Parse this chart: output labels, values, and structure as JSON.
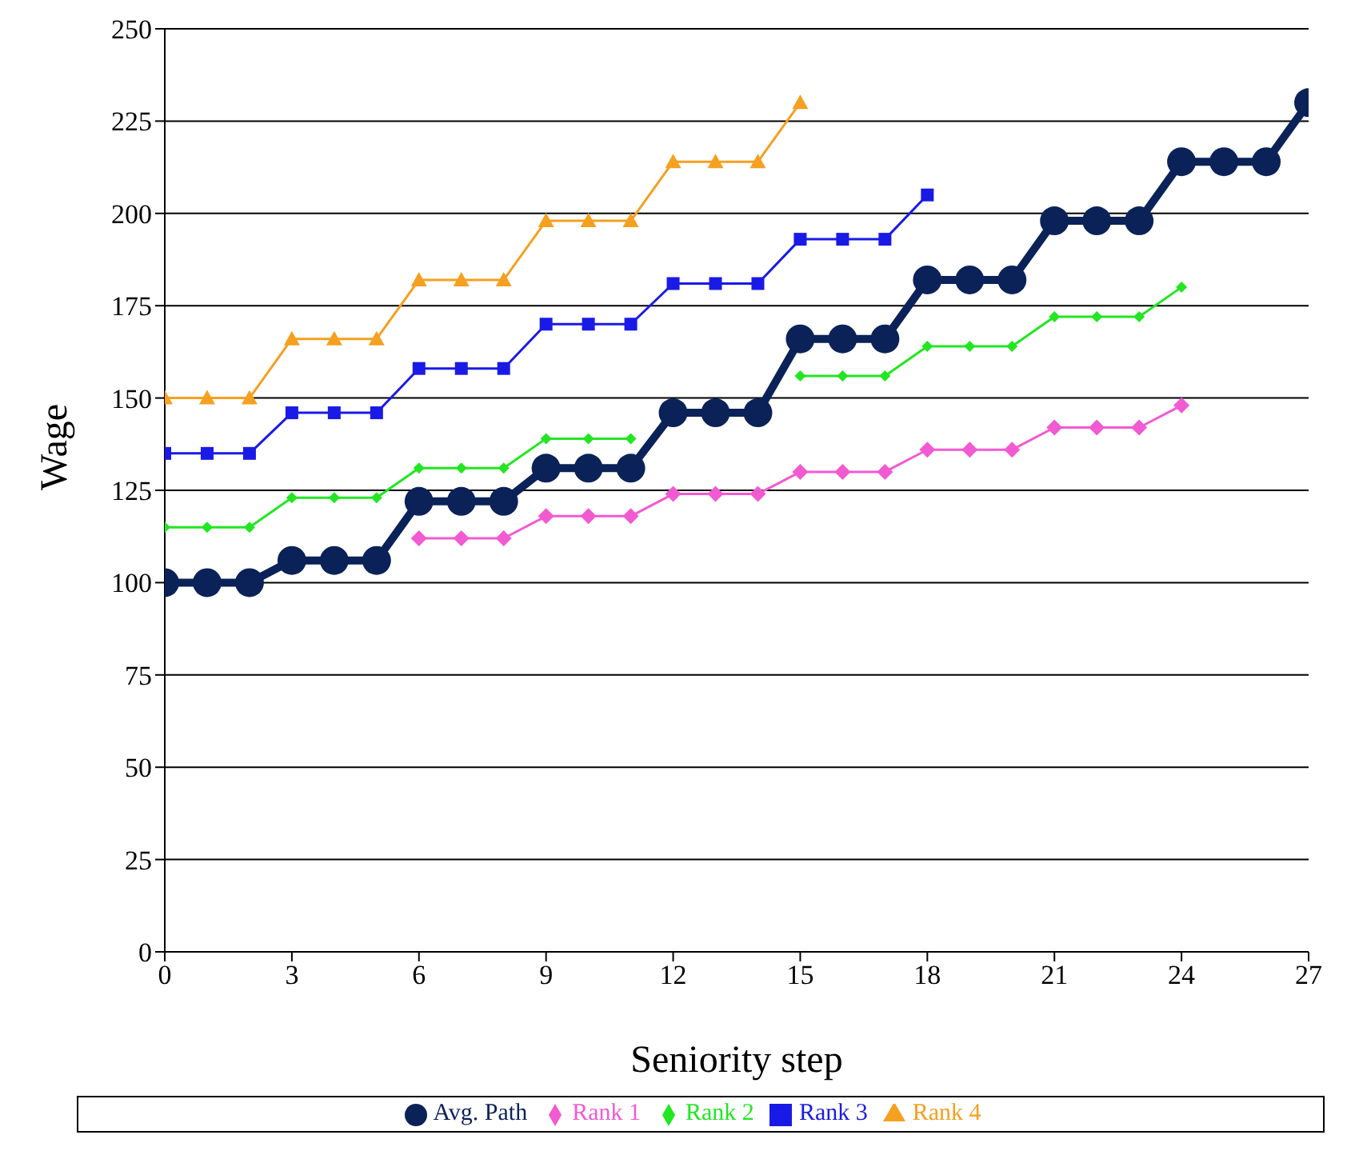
{
  "chart_data": {
    "type": "line",
    "xlabel": "Seniority step",
    "ylabel": "Wage",
    "x": [
      0,
      1,
      2,
      3,
      4,
      5,
      6,
      7,
      8,
      9,
      10,
      11,
      12,
      13,
      14,
      15,
      16,
      17,
      18,
      19,
      20,
      21,
      22,
      23,
      24,
      25,
      26,
      27
    ],
    "xlim": [
      0,
      27
    ],
    "xticks": [
      0,
      3,
      6,
      9,
      12,
      15,
      18,
      21,
      24,
      27
    ],
    "ylim": [
      0,
      250
    ],
    "yticks": [
      0,
      25,
      50,
      75,
      100,
      125,
      150,
      175,
      200,
      225,
      250
    ],
    "grid": "y",
    "legend": "bottom",
    "series": [
      {
        "name": "Rank 4",
        "color": "#f5a020",
        "marker": "triangle",
        "values": [
          150,
          150,
          150,
          166,
          166,
          166,
          182,
          182,
          182,
          198,
          198,
          198,
          214,
          214,
          214,
          230,
          null,
          null,
          null,
          null,
          null,
          null,
          null,
          null,
          null,
          null,
          null,
          null
        ]
      },
      {
        "name": "Rank 3",
        "color": "#1a1ae6",
        "marker": "square",
        "values": [
          135,
          135,
          135,
          146,
          146,
          146,
          158,
          158,
          158,
          170,
          170,
          170,
          181,
          181,
          181,
          193,
          193,
          193,
          205,
          null,
          null,
          null,
          null,
          null,
          null,
          null,
          null,
          null
        ]
      },
      {
        "name": "Rank 2",
        "color": "#22e622",
        "marker": "diamond",
        "values": [
          115,
          115,
          115,
          123,
          123,
          123,
          131,
          131,
          131,
          139,
          139,
          139,
          null,
          null,
          null,
          156,
          156,
          156,
          164,
          164,
          164,
          172,
          172,
          172,
          180,
          null,
          null,
          null
        ]
      },
      {
        "name": "Rank 1",
        "color": "#f25ad2",
        "marker": "diamond",
        "values": [
          null,
          null,
          null,
          null,
          null,
          null,
          112,
          112,
          112,
          118,
          118,
          118,
          124,
          124,
          124,
          130,
          130,
          130,
          136,
          136,
          136,
          142,
          142,
          142,
          148,
          null,
          null,
          null
        ]
      },
      {
        "name": "Avg. Path",
        "color": "#0a2258",
        "marker": "circle",
        "values": [
          100,
          100,
          100,
          106,
          106,
          106,
          122,
          122,
          122,
          131,
          131,
          131,
          146,
          146,
          146,
          166,
          166,
          166,
          182,
          182,
          182,
          198,
          198,
          198,
          214,
          214,
          214,
          230
        ]
      }
    ]
  }
}
